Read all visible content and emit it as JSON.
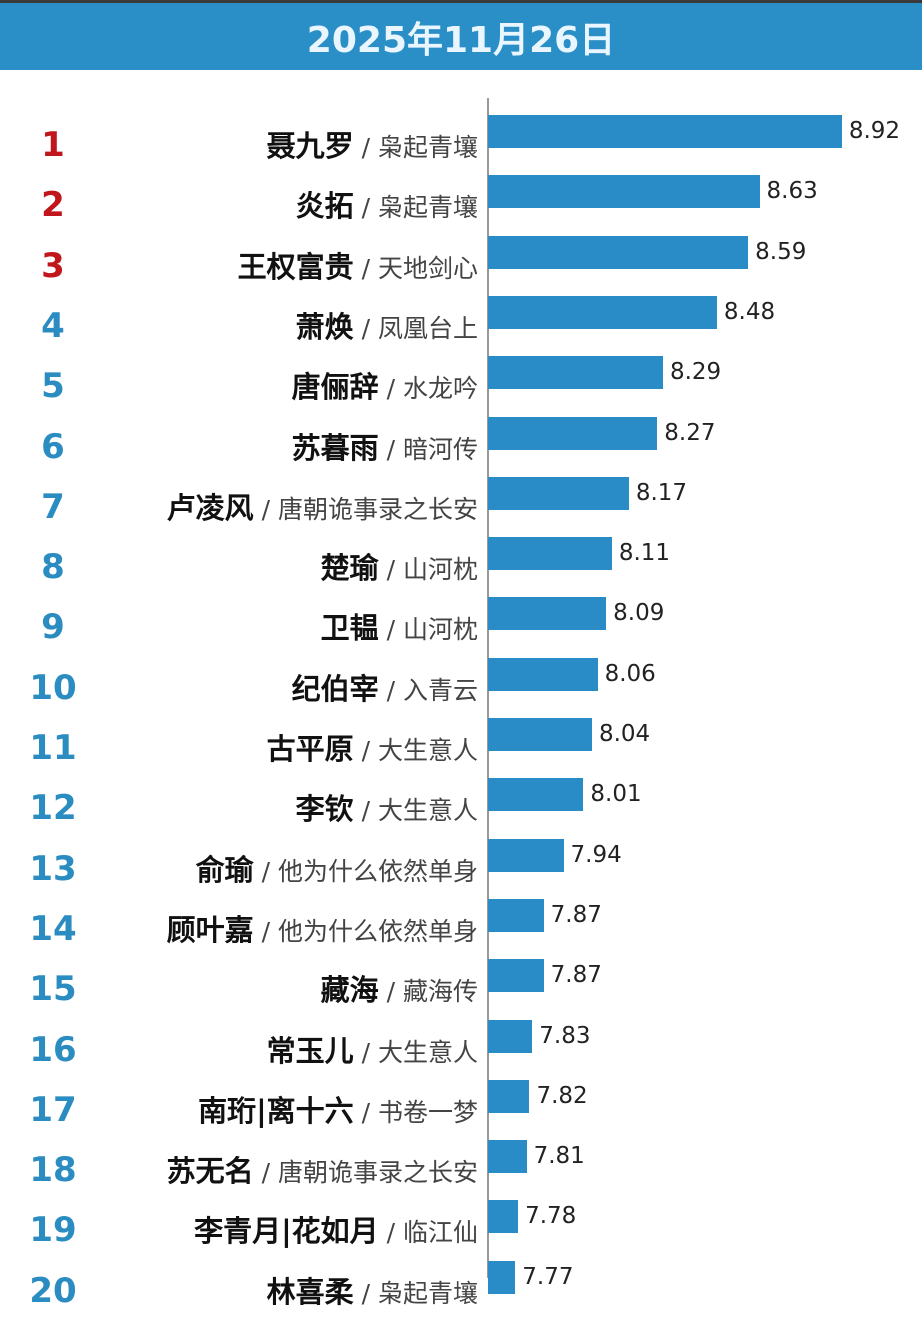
{
  "title": "2025年11月26日",
  "colors": {
    "header": "#2a8fc6",
    "bar": "#2a8cc6",
    "top3_rank": "#c0161c",
    "rank": "#2a8cc0"
  },
  "chart_data": {
    "type": "bar",
    "orientation": "horizontal",
    "title": "2025年11月26日",
    "separator": "/",
    "rows": [
      {
        "rank": "1",
        "name": "聂九罗",
        "drama": "枭起青壤",
        "value": 8.92
      },
      {
        "rank": "2",
        "name": "炎拓",
        "drama": "枭起青壤",
        "value": 8.63
      },
      {
        "rank": "3",
        "name": "王权富贵",
        "drama": "天地剑心",
        "value": 8.59
      },
      {
        "rank": "4",
        "name": "萧焕",
        "drama": "凤凰台上",
        "value": 8.48
      },
      {
        "rank": "5",
        "name": "唐俪辞",
        "drama": "水龙吟",
        "value": 8.29
      },
      {
        "rank": "6",
        "name": "苏暮雨",
        "drama": "暗河传",
        "value": 8.27
      },
      {
        "rank": "7",
        "name": "卢凌风",
        "drama": "唐朝诡事录之长安",
        "value": 8.17
      },
      {
        "rank": "8",
        "name": "楚瑜",
        "drama": "山河枕",
        "value": 8.11
      },
      {
        "rank": "9",
        "name": "卫韫",
        "drama": "山河枕",
        "value": 8.09
      },
      {
        "rank": "10",
        "name": "纪伯宰",
        "drama": "入青云",
        "value": 8.06
      },
      {
        "rank": "11",
        "name": "古平原",
        "drama": "大生意人",
        "value": 8.04
      },
      {
        "rank": "12",
        "name": "李钦",
        "drama": "大生意人",
        "value": 8.01
      },
      {
        "rank": "13",
        "name": "俞瑜",
        "drama": "他为什么依然单身",
        "value": 7.94
      },
      {
        "rank": "14",
        "name": "顾叶嘉",
        "drama": "他为什么依然单身",
        "value": 7.87
      },
      {
        "rank": "15",
        "name": "藏海",
        "drama": "藏海传",
        "value": 7.87
      },
      {
        "rank": "16",
        "name": "常玉儿",
        "drama": "大生意人",
        "value": 7.83
      },
      {
        "rank": "17",
        "name": "南珩|离十六",
        "drama": "书卷一梦",
        "value": 7.82
      },
      {
        "rank": "18",
        "name": "苏无名",
        "drama": "唐朝诡事录之长安",
        "value": 7.81
      },
      {
        "rank": "19",
        "name": "李青月|花如月",
        "drama": "临江仙",
        "value": 7.78
      },
      {
        "rank": "20",
        "name": "林喜柔",
        "drama": "枭起青壤",
        "value": 7.77
      }
    ]
  }
}
